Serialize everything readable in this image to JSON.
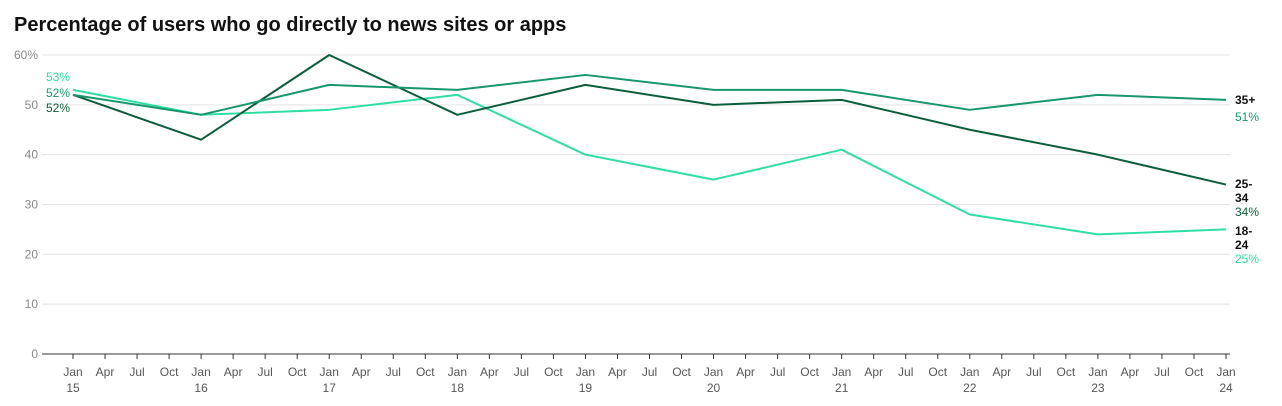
{
  "chart_data": {
    "type": "line",
    "title": "Percentage of users who go directly to news sites or apps",
    "xlabel": "",
    "ylabel": "",
    "x": [
      "Jan 15",
      "Jan 16",
      "Jan 17",
      "Jan 18",
      "Jan 19",
      "Jan 20",
      "Jan 21",
      "Jan 22",
      "Jan 23",
      "Jan 24"
    ],
    "x_tick_months": [
      "Jan",
      "Apr",
      "Jul",
      "Oct"
    ],
    "x_tick_years": [
      "15",
      "16",
      "17",
      "18",
      "19",
      "20",
      "21",
      "22",
      "23",
      "24"
    ],
    "ylim": [
      0,
      60
    ],
    "y_ticks": [
      "0",
      "10",
      "20",
      "30",
      "40",
      "50",
      "60%"
    ],
    "grid": true,
    "series": [
      {
        "name": "18-24",
        "color": "#2ddfa5",
        "values": [
          53,
          48,
          49,
          52,
          40,
          35,
          41,
          28,
          24,
          25
        ],
        "start_label": "53%",
        "end_label": "25%"
      },
      {
        "name": "25-34",
        "color": "#0b5e3b",
        "values": [
          52,
          43,
          60,
          48,
          54,
          50,
          51,
          45,
          40,
          34
        ],
        "start_label": "52%",
        "end_label": "34%"
      },
      {
        "name": "35+",
        "color": "#17986b",
        "values": [
          52,
          48,
          54,
          53,
          56,
          53,
          53,
          49,
          52,
          51
        ],
        "start_label": "52%",
        "end_label": "51%"
      }
    ]
  }
}
